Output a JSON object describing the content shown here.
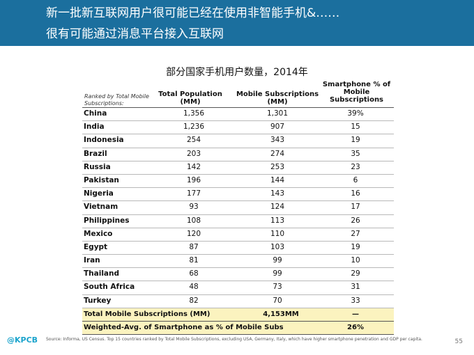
{
  "header": {
    "line1": "新一批新互联网用户很可能已经在使用非智能手机&……",
    "line2": "很有可能通过消息平台接入互联网"
  },
  "table_title": "部分国家手机用户数量，2014年",
  "table": {
    "ranked_by": "Ranked by Total Mobile Subscriptions:",
    "col1": "Total Population (MM)",
    "col2": "Mobile Subscriptions (MM)",
    "col3": "Smartphone % of Mobile Subscriptions",
    "rows": [
      {
        "country": "China",
        "pop": "1,356",
        "mob": "1,301",
        "sp": "39%"
      },
      {
        "country": "India",
        "pop": "1,236",
        "mob": "907",
        "sp": "15"
      },
      {
        "country": "Indonesia",
        "pop": "254",
        "mob": "343",
        "sp": "19"
      },
      {
        "country": "Brazil",
        "pop": "203",
        "mob": "274",
        "sp": "35"
      },
      {
        "country": "Russia",
        "pop": "142",
        "mob": "253",
        "sp": "23"
      },
      {
        "country": "Pakistan",
        "pop": "196",
        "mob": "144",
        "sp": "6"
      },
      {
        "country": "Nigeria",
        "pop": "177",
        "mob": "143",
        "sp": "16"
      },
      {
        "country": "Vietnam",
        "pop": "93",
        "mob": "124",
        "sp": "17"
      },
      {
        "country": "Philippines",
        "pop": "108",
        "mob": "113",
        "sp": "26"
      },
      {
        "country": "Mexico",
        "pop": "120",
        "mob": "110",
        "sp": "27"
      },
      {
        "country": "Egypt",
        "pop": "87",
        "mob": "103",
        "sp": "19"
      },
      {
        "country": "Iran",
        "pop": "81",
        "mob": "99",
        "sp": "10"
      },
      {
        "country": "Thailand",
        "pop": "68",
        "mob": "99",
        "sp": "29"
      },
      {
        "country": "South Africa",
        "pop": "48",
        "mob": "73",
        "sp": "31"
      },
      {
        "country": "Turkey",
        "pop": "82",
        "mob": "70",
        "sp": "33"
      }
    ],
    "total_label": "Total Mobile Subscriptions (MM)",
    "total_value": "4,153MM",
    "total_sp": "—",
    "wavg_label": "Weighted-Avg. of Smartphone as % of Mobile Subs",
    "wavg_value": "26%"
  },
  "footer": {
    "logo": "@KPCB",
    "source": "Source: Informa, US Census. Top 15 countries ranked by Total Mobile Subscriptions, excluding USA, Germany, Italy, which have higher smartphone penetration and GDP per capita.",
    "page": "55"
  },
  "colors": {
    "header_bg": "#1b6f9e",
    "highlight_bg": "#fbf3bf",
    "logo": "#1aa3cc"
  }
}
